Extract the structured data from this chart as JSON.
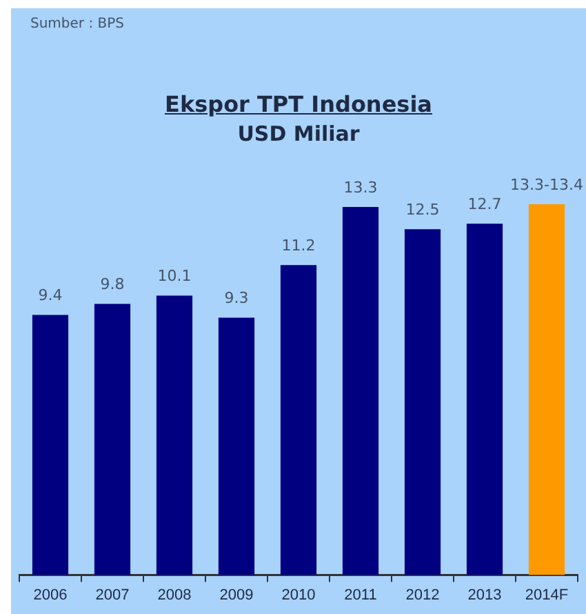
{
  "chart_data": {
    "type": "bar",
    "title": "Ekspor TPT Indonesia",
    "subtitle": "USD Miliar",
    "annotations": [
      "Sumber : BPS"
    ],
    "categories": [
      "2006",
      "2007",
      "2008",
      "2009",
      "2010",
      "2011",
      "2012",
      "2013",
      "2014F"
    ],
    "values": [
      9.4,
      9.8,
      10.1,
      9.3,
      11.2,
      13.3,
      12.5,
      12.7,
      13.4
    ],
    "value_labels": [
      "9.4",
      "9.8",
      "10.1",
      "9.3",
      "11.2",
      "13.3",
      "12.5",
      "12.7",
      "13.3-13.4"
    ],
    "colors": [
      "#000080",
      "#000080",
      "#000080",
      "#000080",
      "#000080",
      "#000080",
      "#000080",
      "#000080",
      "#ff9900"
    ],
    "grid": false,
    "legend": false
  }
}
